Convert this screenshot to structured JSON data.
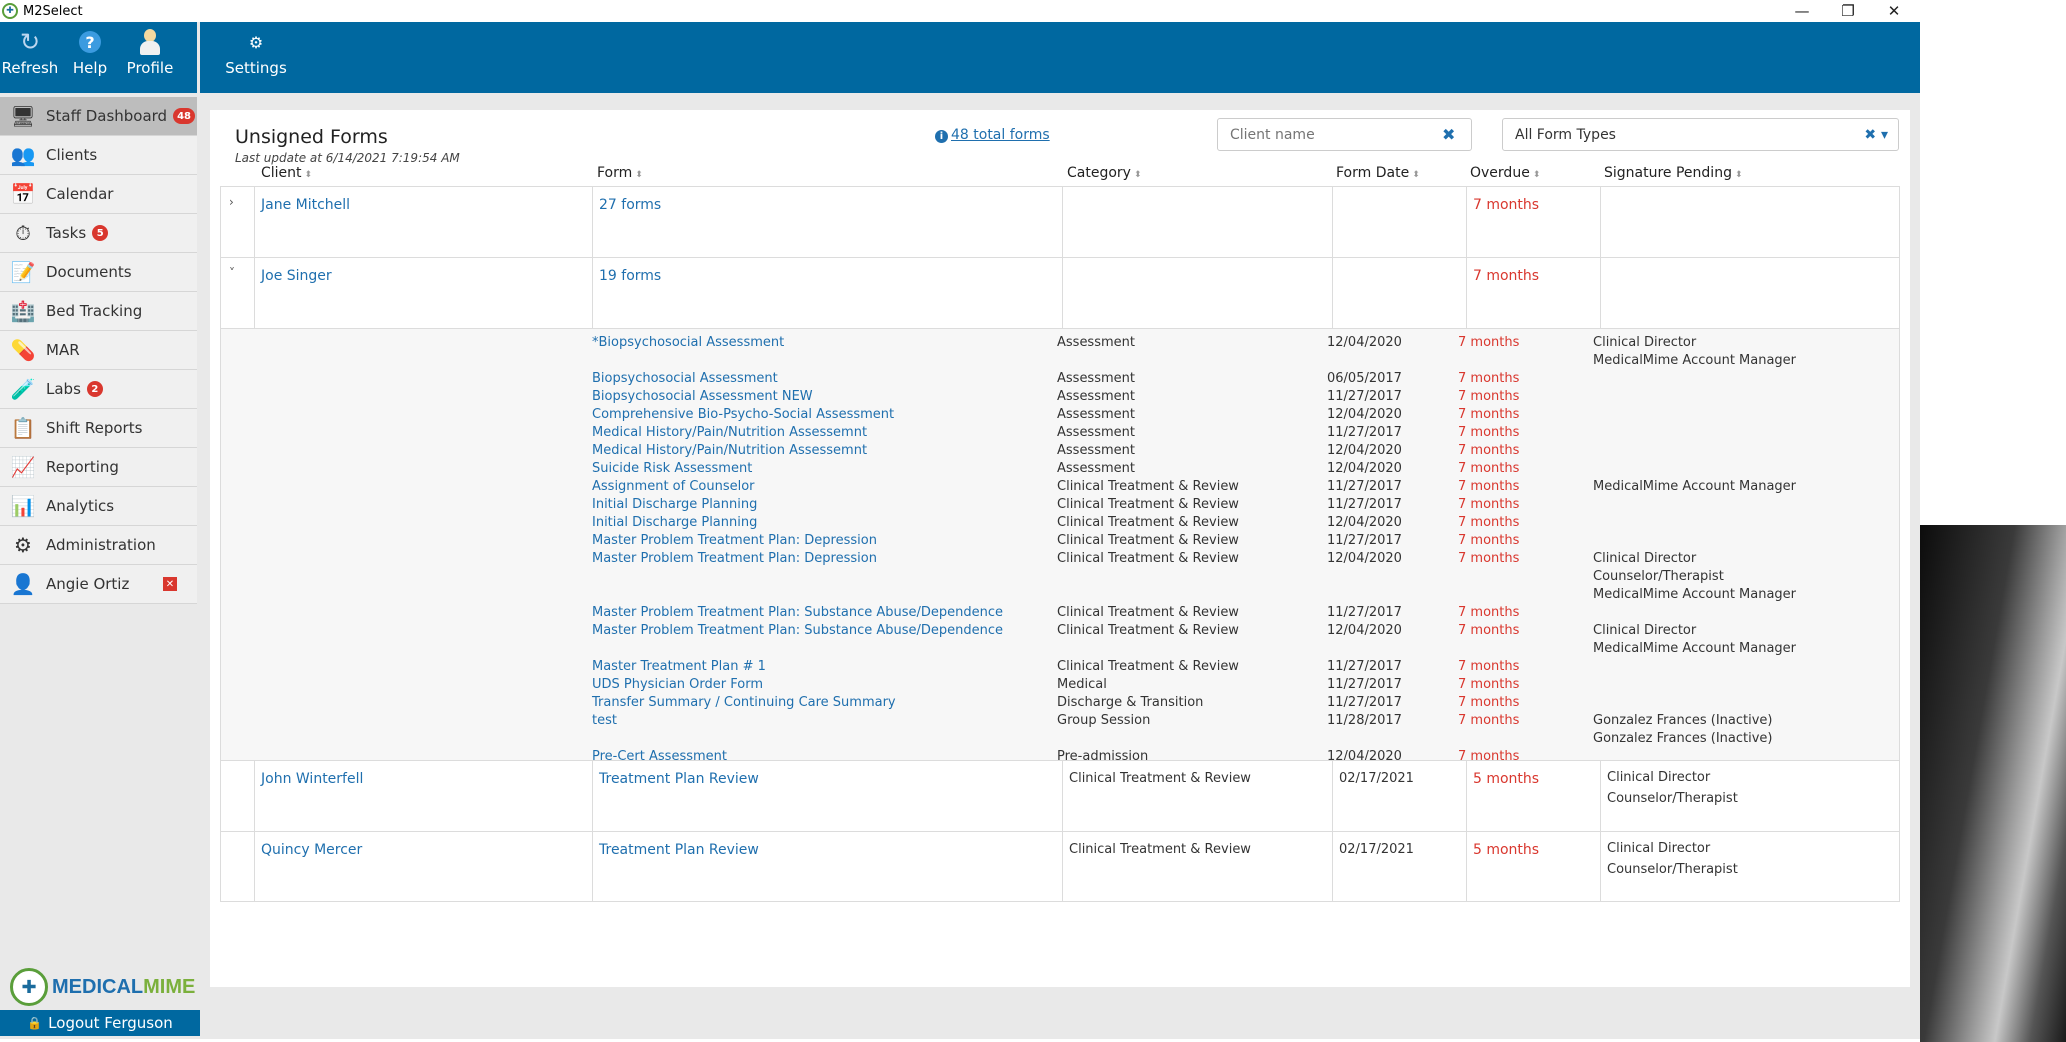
{
  "window": {
    "title": "M2Select",
    "controls": [
      "minimize",
      "restore",
      "close"
    ]
  },
  "toolbar": {
    "refresh_label": "Refresh",
    "help_label": "Help",
    "profile_label": "Profile",
    "settings_label": "Settings"
  },
  "sidebar": {
    "items": [
      {
        "label": "Staff Dashboard",
        "badge": "48",
        "icon": "dashboard-icon"
      },
      {
        "label": "Clients",
        "icon": "clients-icon"
      },
      {
        "label": "Calendar",
        "icon": "calendar-icon"
      },
      {
        "label": "Tasks",
        "badge": "5",
        "icon": "tasks-icon"
      },
      {
        "label": "Documents",
        "icon": "documents-icon"
      },
      {
        "label": "Bed Tracking",
        "icon": "bed-tracking-icon"
      },
      {
        "label": "MAR",
        "icon": "mar-icon"
      },
      {
        "label": "Labs",
        "badge": "2",
        "icon": "labs-icon"
      },
      {
        "label": "Shift Reports",
        "icon": "shift-reports-icon"
      },
      {
        "label": "Reporting",
        "icon": "reporting-icon"
      },
      {
        "label": "Analytics",
        "icon": "analytics-icon"
      },
      {
        "label": "Administration",
        "icon": "gear-icon"
      },
      {
        "label": "Angie Ortiz",
        "icon": "user-icon"
      }
    ],
    "logo_part1": "MEDICAL",
    "logo_part2": "MIME",
    "logout_label": "Logout Ferguson"
  },
  "main": {
    "title": "Unsigned Forms",
    "last_update": "Last update at 6/14/2021 7:19:54 AM",
    "total_forms": "48 total forms",
    "client_search_placeholder": "Client name",
    "form_type_value": "All Form Types",
    "columns": [
      "Client",
      "Form",
      "Category",
      "Form Date",
      "Overdue",
      "Signature Pending"
    ],
    "groups": [
      {
        "client": "Jane Mitchell",
        "form": "27 forms",
        "overdue": "7 months"
      },
      {
        "client": "Joe Singer",
        "form": "19 forms",
        "overdue": "7 months"
      }
    ],
    "joe_details": [
      {
        "form": "*Biopsychosocial Assessment",
        "category": "Assessment",
        "date": "12/04/2020",
        "overdue": "7 months",
        "pending": [
          "Clinical Director",
          "MedicalMime Account Manager"
        ]
      },
      {
        "form": "Biopsychosocial Assessment",
        "category": "Assessment",
        "date": "06/05/2017",
        "overdue": "7 months",
        "pending": []
      },
      {
        "form": "Biopsychosocial Assessment NEW",
        "category": "Assessment",
        "date": "11/27/2017",
        "overdue": "7 months",
        "pending": []
      },
      {
        "form": "Comprehensive Bio-Psycho-Social Assessment",
        "category": "Assessment",
        "date": "12/04/2020",
        "overdue": "7 months",
        "pending": []
      },
      {
        "form": "Medical History/Pain/Nutrition Assessemnt",
        "category": "Assessment",
        "date": "11/27/2017",
        "overdue": "7 months",
        "pending": []
      },
      {
        "form": "Medical History/Pain/Nutrition Assessemnt",
        "category": "Assessment",
        "date": "12/04/2020",
        "overdue": "7 months",
        "pending": []
      },
      {
        "form": "Suicide Risk Assessment",
        "category": "Assessment",
        "date": "12/04/2020",
        "overdue": "7 months",
        "pending": []
      },
      {
        "form": "Assignment of Counselor",
        "category": "Clinical Treatment & Review",
        "date": "11/27/2017",
        "overdue": "7 months",
        "pending": [
          "MedicalMime Account Manager"
        ]
      },
      {
        "form": "Initial Discharge Planning",
        "category": "Clinical Treatment & Review",
        "date": "11/27/2017",
        "overdue": "7 months",
        "pending": []
      },
      {
        "form": "Initial Discharge Planning",
        "category": "Clinical Treatment & Review",
        "date": "12/04/2020",
        "overdue": "7 months",
        "pending": []
      },
      {
        "form": "Master Problem Treatment Plan: Depression",
        "category": "Clinical Treatment & Review",
        "date": "11/27/2017",
        "overdue": "7 months",
        "pending": []
      },
      {
        "form": "Master Problem Treatment Plan: Depression",
        "category": "Clinical Treatment & Review",
        "date": "12/04/2020",
        "overdue": "7 months",
        "pending": [
          "Clinical Director",
          "Counselor/Therapist",
          "MedicalMime Account Manager"
        ]
      },
      {
        "form": "Master Problem Treatment Plan: Substance Abuse/Dependence",
        "category": "Clinical Treatment & Review",
        "date": "11/27/2017",
        "overdue": "7 months",
        "pending": []
      },
      {
        "form": "Master Problem Treatment Plan: Substance Abuse/Dependence",
        "category": "Clinical Treatment & Review",
        "date": "12/04/2020",
        "overdue": "7 months",
        "pending": [
          "Clinical Director",
          "MedicalMime Account Manager"
        ]
      },
      {
        "form": "Master Treatment Plan # 1",
        "category": "Clinical Treatment & Review",
        "date": "11/27/2017",
        "overdue": "7 months",
        "pending": []
      },
      {
        "form": "UDS Physician Order Form",
        "category": "Medical",
        "date": "11/27/2017",
        "overdue": "7 months",
        "pending": []
      },
      {
        "form": "Transfer Summary / Continuing Care Summary",
        "category": "Discharge & Transition",
        "date": "11/27/2017",
        "overdue": "7 months",
        "pending": []
      },
      {
        "form": "test",
        "category": "Group Session",
        "date": "11/28/2017",
        "overdue": "7 months",
        "pending": [
          "Gonzalez Frances (Inactive)",
          "Gonzalez Frances (Inactive)"
        ]
      },
      {
        "form": "Pre-Cert Assessment",
        "category": "Pre-admission",
        "date": "12/04/2020",
        "overdue": "7 months",
        "pending": []
      }
    ],
    "single_rows": [
      {
        "client": "John Winterfell",
        "form": "Treatment Plan Review",
        "category": "Clinical Treatment & Review",
        "date": "02/17/2021",
        "overdue": "5 months",
        "pending": [
          "Clinical Director",
          "Counselor/Therapist"
        ]
      },
      {
        "client": "Quincy Mercer",
        "form": "Treatment Plan Review",
        "category": "Clinical Treatment & Review",
        "date": "02/17/2021",
        "overdue": "5 months",
        "pending": [
          "Clinical Director",
          "Counselor/Therapist"
        ]
      }
    ]
  }
}
